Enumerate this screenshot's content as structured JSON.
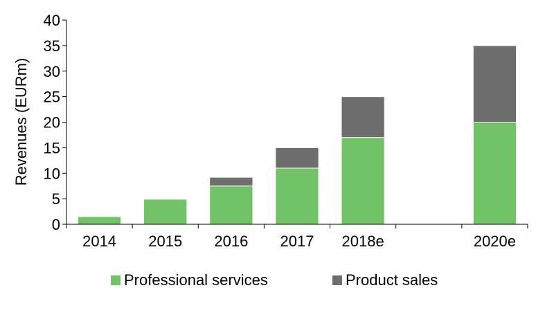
{
  "chart_data": {
    "type": "bar",
    "stacked": true,
    "categories": [
      "2014",
      "2015",
      "2016",
      "2017",
      "2018e",
      "",
      "2020e"
    ],
    "series": [
      {
        "name": "Professional services",
        "color": "#72c267",
        "values": [
          1.5,
          4.9,
          7.5,
          11.0,
          17.0,
          null,
          20.0
        ]
      },
      {
        "name": "Product sales",
        "color": "#6e6e6e",
        "values": [
          0,
          0,
          1.7,
          4.0,
          8.0,
          null,
          15.0
        ]
      }
    ],
    "title": "",
    "xlabel": "",
    "ylabel": "Revenues (EURm)",
    "ylim": [
      0,
      40
    ],
    "yticks": [
      0,
      5,
      10,
      15,
      20,
      25,
      30,
      35,
      40
    ],
    "grid": false,
    "legend": "bottom"
  }
}
